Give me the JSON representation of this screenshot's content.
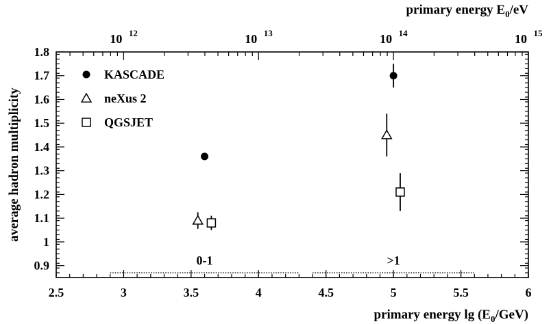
{
  "chart_data": {
    "type": "scatter",
    "xlabel": "primary energy lg (E₀/GeV)",
    "xlabel_parts": {
      "main": "primary energy lg (E",
      "sub": "0",
      "tail": "/GeV)"
    },
    "ylabel": "average hadron multiplicity",
    "top_axis_label": "primary energy E₀/eV",
    "top_axis_label_parts": {
      "main": "primary energy E",
      "sub": "0",
      "tail": "/eV"
    },
    "xlim": [
      2.5,
      6
    ],
    "ylim": [
      0.85,
      1.8
    ],
    "x_ticks": [
      "2.5",
      "3",
      "3.5",
      "4",
      "4.5",
      "5",
      "5.5",
      "6"
    ],
    "y_ticks": [
      "0.9",
      "1",
      "1.1",
      "1.2",
      "1.3",
      "1.4",
      "1.5",
      "1.6",
      "1.7",
      "1.8"
    ],
    "top_axis_ticks": [
      {
        "base": "10",
        "exp": "12",
        "lgGeV": 3
      },
      {
        "base": "10",
        "exp": "13",
        "lgGeV": 4
      },
      {
        "base": "10",
        "exp": "14",
        "lgGeV": 5
      },
      {
        "base": "10",
        "exp": "15",
        "lgGeV": 6
      }
    ],
    "legend_position": "top-left",
    "series": [
      {
        "name": "KASCADE",
        "marker": "filled-circle",
        "points": [
          {
            "x": 3.6,
            "y": 1.36,
            "yerr": 0.015
          },
          {
            "x": 5.0,
            "y": 1.7,
            "yerr": 0.05
          }
        ]
      },
      {
        "name": "neXus 2",
        "marker": "open-triangle",
        "points": [
          {
            "x": 3.55,
            "y": 1.09,
            "yerr": 0.035
          },
          {
            "x": 4.95,
            "y": 1.45,
            "yerr": 0.09
          }
        ]
      },
      {
        "name": "QGSJET",
        "marker": "open-square",
        "points": [
          {
            "x": 3.65,
            "y": 1.08,
            "yerr": 0.03
          },
          {
            "x": 5.05,
            "y": 1.21,
            "yerr": 0.08
          }
        ]
      }
    ],
    "ranges": [
      {
        "label": "0-1",
        "x_from": 2.9,
        "x_to": 4.3,
        "y": 0.87
      },
      {
        "label": ">1",
        "x_from": 4.4,
        "x_to": 5.6,
        "y": 0.87
      }
    ]
  }
}
